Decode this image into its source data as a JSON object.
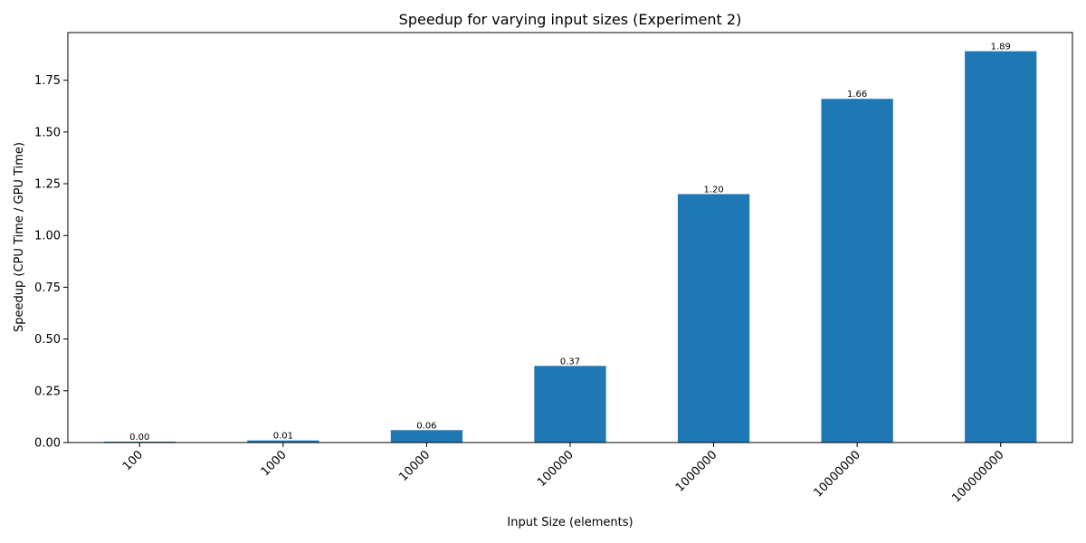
{
  "chart_data": {
    "type": "bar",
    "title": "Speedup for varying input sizes (Experiment 2)",
    "xlabel": "Input Size (elements)",
    "ylabel": "Speedup (CPU Time / GPU Time)",
    "categories": [
      "100",
      "1000",
      "10000",
      "100000",
      "1000000",
      "10000000",
      "100000000"
    ],
    "values": [
      0.004,
      0.01,
      0.06,
      0.37,
      1.2,
      1.66,
      1.89
    ],
    "value_labels": [
      "0.00",
      "0.01",
      "0.06",
      "0.37",
      "1.20",
      "1.66",
      "1.89"
    ],
    "ylim": [
      0,
      1.98
    ],
    "yticks": [
      0,
      0.25,
      0.5,
      0.75,
      1.0,
      1.25,
      1.5,
      1.75
    ],
    "ytick_labels": [
      "0.00",
      "0.25",
      "0.50",
      "0.75",
      "1.00",
      "1.25",
      "1.50",
      "1.75"
    ],
    "grid": false,
    "bar_color": "#1f77b4"
  }
}
